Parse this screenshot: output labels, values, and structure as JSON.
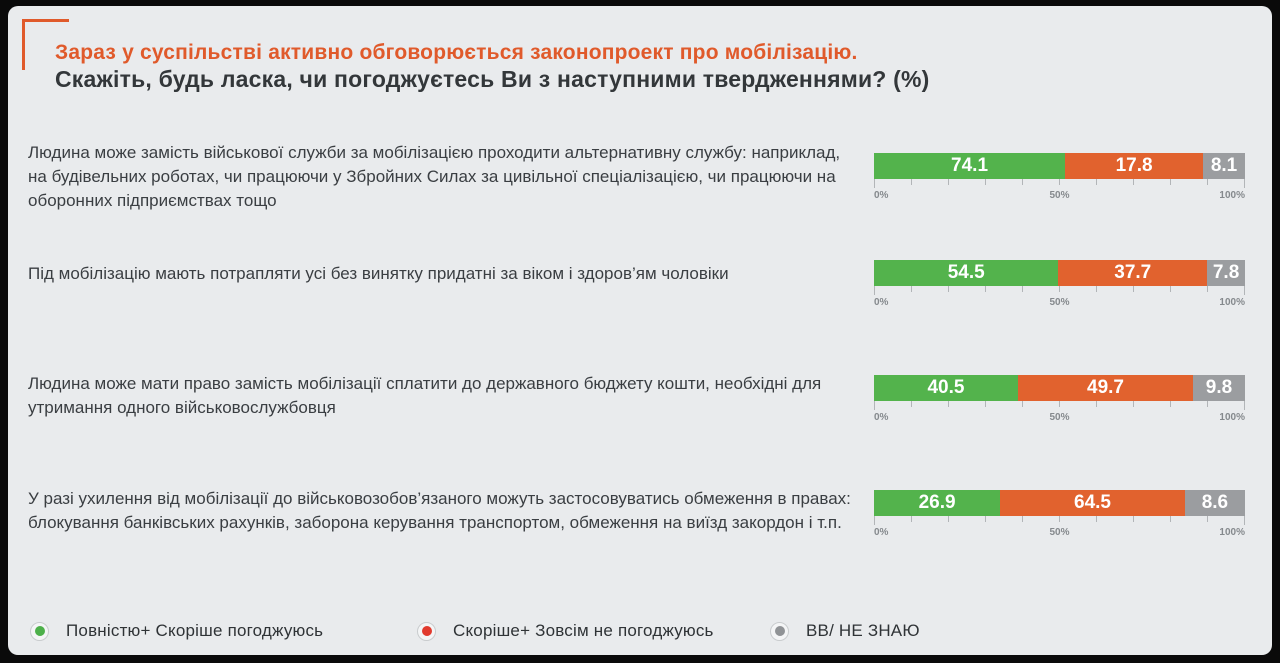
{
  "header": {
    "title_accent": "Зараз у суспільстві активно обговорюється законопроект про мобілізацію.",
    "title_main": "Скажіть, будь ласка, чи погоджуєтесь Ви з наступними твердженнями? (%)"
  },
  "colors": {
    "accent_orange": "#e05a2b",
    "agree_green": "#53b34c",
    "disagree_orange": "#e1622e",
    "dontknow_gray": "#9b9da0",
    "background": "#e9ebed",
    "frame_black": "#0a0a0a"
  },
  "axis": {
    "tick_labels": [
      "0%",
      "50%",
      "100%"
    ],
    "tick_count": 11,
    "range": [
      0,
      100
    ]
  },
  "legend": {
    "items": [
      {
        "label": "Повністю+ Скоріше погоджуюсь",
        "color": "#4db04a"
      },
      {
        "label": "Скоріше+ Зовсім не погоджуюсь",
        "color": "#e13a2e"
      },
      {
        "label": "ВВ/ НЕ ЗНАЮ",
        "color": "#909396"
      }
    ]
  },
  "chart_data": {
    "type": "bar",
    "orientation": "horizontal-stacked",
    "unit": "%",
    "title": "Зараз у суспільстві активно обговорюється законопроект про мобілізацію. Скажіть, будь ласка, чи погоджуєтесь Ви з наступними твердженнями? (%)",
    "series_names": [
      "Повністю+ Скоріше погоджуюсь",
      "Скоріше+ Зовсім не погоджуюсь",
      "ВВ/ НЕ ЗНАЮ"
    ],
    "axis_range": [
      0,
      100
    ],
    "grid": false,
    "legend_position": "bottom",
    "rows": [
      {
        "statement": "Людина може замість військової служби за мобілізацією проходити альтернативну службу: наприклад, на будівельних роботах, чи працюючи у Збройних Силах за цивільної спеціалізацією, чи працюючи на оборонних підприємствах тощо",
        "values": [
          74.1,
          17.8,
          8.1
        ],
        "display_widths": [
          51.5,
          37.2,
          11.3
        ]
      },
      {
        "statement": "Під мобілізацію мають потрапляти усі без винятку придатні за віком і здоров’ям чоловіки",
        "values": [
          54.5,
          37.7,
          7.8
        ],
        "display_widths": [
          49.7,
          40.1,
          10.2
        ]
      },
      {
        "statement": "Людина може мати право замість мобілізації сплатити до державного бюджету кошти, необхідні для утримання одного військовослужбовця",
        "values": [
          40.5,
          49.7,
          9.8
        ],
        "display_widths": [
          38.8,
          47.2,
          14.0
        ]
      },
      {
        "statement": "У разі ухилення від мобілізації до військовозобов’язаного можуть застосовуватись обмеження в правах: блокування банківських рахунків, заборона керування транспортом, обмеження на виїзд закордон і т.п.",
        "values": [
          26.9,
          64.5,
          8.6
        ],
        "display_widths": [
          34.0,
          49.8,
          16.2
        ]
      }
    ]
  }
}
